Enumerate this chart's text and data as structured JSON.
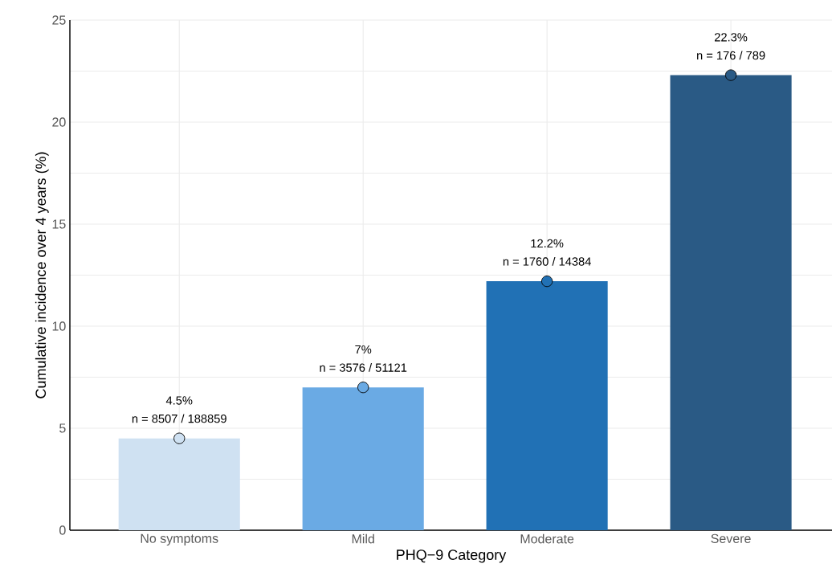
{
  "chart_data": {
    "type": "bar",
    "xlabel": "PHQ−9 Category",
    "ylabel": "Cumulative incidence over 4 years (%)",
    "categories": [
      "No symptoms",
      "Mild",
      "Moderate",
      "Severe"
    ],
    "series": [
      {
        "values": [
          4.5,
          7,
          12.2,
          22.3
        ],
        "colors": [
          "#cfe1f2",
          "#6aaae4",
          "#2171b5",
          "#2a5a85"
        ]
      },
      {
        "type": "scatter",
        "x": [
          "No symptoms",
          "Mild",
          "Moderate",
          "Severe"
        ],
        "values": [
          4.5,
          7,
          12.2,
          22.3
        ],
        "colors": [
          "#cfe1f2",
          "#6aaae4",
          "#2171b5",
          "#2a5a85"
        ],
        "marker": "circle"
      }
    ],
    "annotations": [
      "4.5%",
      {
        "text": "n = 8507 / 188859",
        "x": "No symptoms",
        "y": 4.5
      },
      "7%",
      {
        "text": "n = 3576 / 51121",
        "x": "Mild",
        "y": 7
      },
      "12.2%",
      {
        "text": "n = 1760 / 14384",
        "x": "Moderate",
        "y": 12.2
      },
      "22.3%",
      {
        "text": "n = 176 / 789",
        "x": "Severe",
        "y": 22.3
      }
    ],
    "ylim": [
      0,
      25
    ],
    "yticks": [
      0,
      {
        "value": 2.5,
        "label": null
      },
      5,
      {
        "value": 7.5,
        "label": null
      },
      10,
      {
        "value": 12.5,
        "label": null
      },
      15,
      {
        "value": 17.5,
        "label": null
      },
      20,
      {
        "value": 22.5,
        "label": null
      },
      25
    ],
    "grid": true
  }
}
